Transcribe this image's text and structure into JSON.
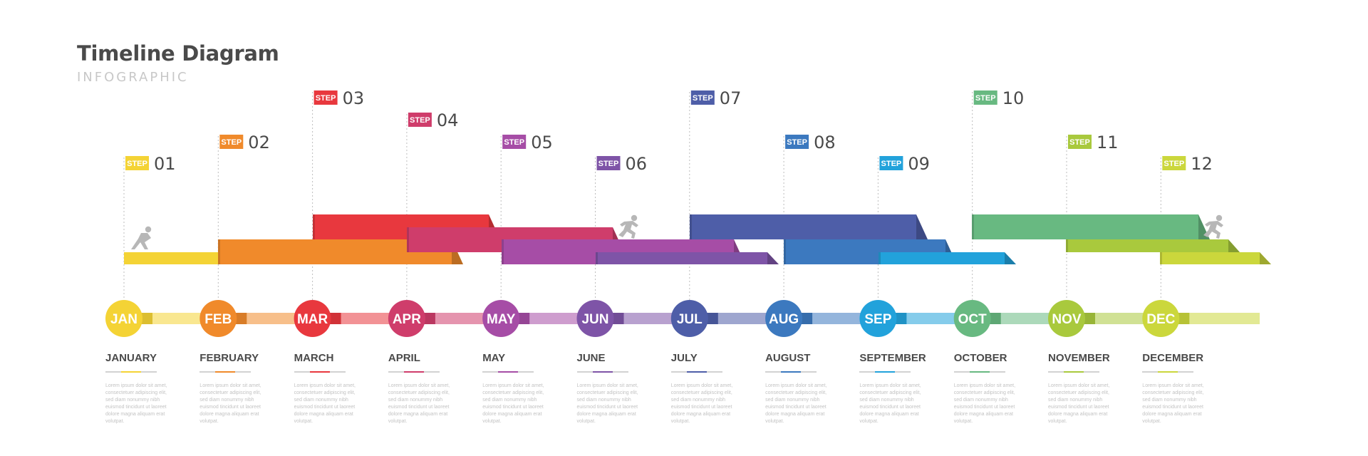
{
  "header": {
    "title": "Timeline Diagram",
    "subtitle": "INFOGRAPHIC"
  },
  "step_label": "STEP",
  "steps": [
    {
      "number": "01",
      "color": "#f4d335"
    },
    {
      "number": "02",
      "color": "#f08a2b"
    },
    {
      "number": "03",
      "color": "#e8383e"
    },
    {
      "number": "04",
      "color": "#cf3d6b"
    },
    {
      "number": "05",
      "color": "#a64da6"
    },
    {
      "number": "06",
      "color": "#7e54a7"
    },
    {
      "number": "07",
      "color": "#4e5ea8"
    },
    {
      "number": "08",
      "color": "#3c79bf"
    },
    {
      "number": "09",
      "color": "#22a2db"
    },
    {
      "number": "10",
      "color": "#68b981"
    },
    {
      "number": "11",
      "color": "#a9c93d"
    },
    {
      "number": "12",
      "color": "#cbd73c"
    }
  ],
  "months": [
    {
      "abbr": "JAN",
      "name": "JANUARY",
      "color": "#f4d335",
      "desc": "Lorem ipsum dolor sit amet, consectetuer adipiscing elit, sed diam nonummy nibh euismod tincidunt ut laoreet dolore magna aliquam erat volutpat."
    },
    {
      "abbr": "FEB",
      "name": "FEBRUARY",
      "color": "#f08a2b",
      "desc": "Lorem ipsum dolor sit amet, consectetuer adipiscing elit, sed diam nonummy nibh euismod tincidunt ut laoreet dolore magna aliquam erat volutpat."
    },
    {
      "abbr": "MAR",
      "name": "MARCH",
      "color": "#e8383e",
      "desc": "Lorem ipsum dolor sit amet, consectetuer adipiscing elit, sed diam nonummy nibh euismod tincidunt ut laoreet dolore magna aliquam erat volutpat."
    },
    {
      "abbr": "APR",
      "name": "APRIL",
      "color": "#cf3d6b",
      "desc": "Lorem ipsum dolor sit amet, consectetuer adipiscing elit, sed diam nonummy nibh euismod tincidunt ut laoreet dolore magna aliquam erat volutpat."
    },
    {
      "abbr": "MAY",
      "name": "MAY",
      "color": "#a64da6",
      "desc": "Lorem ipsum dolor sit amet, consectetuer adipiscing elit, sed diam nonummy nibh euismod tincidunt ut laoreet dolore magna aliquam erat volutpat."
    },
    {
      "abbr": "JUN",
      "name": "JUNE",
      "color": "#7e54a7",
      "desc": "Lorem ipsum dolor sit amet, consectetuer adipiscing elit, sed diam nonummy nibh euismod tincidunt ut laoreet dolore magna aliquam erat volutpat."
    },
    {
      "abbr": "JUL",
      "name": "JULY",
      "color": "#4e5ea8",
      "desc": "Lorem ipsum dolor sit amet, consectetuer adipiscing elit, sed diam nonummy nibh euismod tincidunt ut laoreet dolore magna aliquam erat volutpat."
    },
    {
      "abbr": "AUG",
      "name": "AUGUST",
      "color": "#3c79bf",
      "desc": "Lorem ipsum dolor sit amet, consectetuer adipiscing elit, sed diam nonummy nibh euismod tincidunt ut laoreet dolore magna aliquam erat volutpat."
    },
    {
      "abbr": "SEP",
      "name": "SEPTEMBER",
      "color": "#22a2db",
      "desc": "Lorem ipsum dolor sit amet, consectetuer adipiscing elit, sed diam nonummy nibh euismod tincidunt ut laoreet dolore magna aliquam erat volutpat."
    },
    {
      "abbr": "OCT",
      "name": "OCTOBER",
      "color": "#68b981",
      "desc": "Lorem ipsum dolor sit amet, consectetuer adipiscing elit, sed diam nonummy nibh euismod tincidunt ut laoreet dolore magna aliquam erat volutpat."
    },
    {
      "abbr": "NOV",
      "name": "NOVEMBER",
      "color": "#a9c93d",
      "desc": "Lorem ipsum dolor sit amet, consectetuer adipiscing elit, sed diam nonummy nibh euismod tincidunt ut laoreet dolore magna aliquam erat volutpat."
    },
    {
      "abbr": "DEC",
      "name": "DECEMBER",
      "color": "#cbd73c",
      "desc": "Lorem ipsum dolor sit amet, consectetuer adipiscing elit, sed diam nonummy nibh euismod tincidunt ut laoreet dolore magna aliquam erat volutpat."
    }
  ],
  "icons": [
    "runner-start-icon",
    "runner-icon",
    "runner-finish-icon"
  ]
}
